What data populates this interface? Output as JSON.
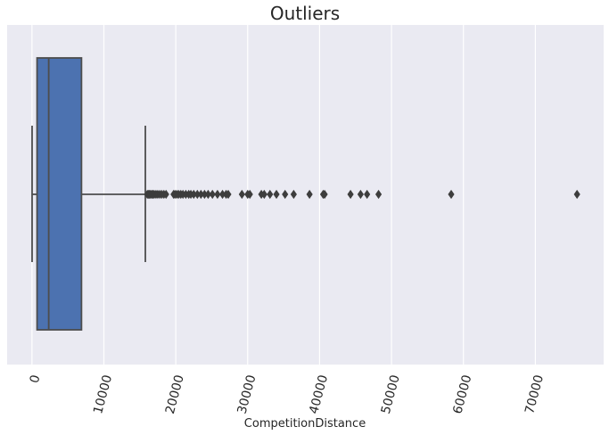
{
  "chart_data": {
    "type": "box",
    "orientation": "horizontal",
    "title": "Outliers",
    "xlabel": "CompetitionDistance",
    "ylabel": "",
    "xlim": [
      -3450,
      79500
    ],
    "xticks": [
      0,
      10000,
      20000,
      30000,
      40000,
      50000,
      60000,
      70000
    ],
    "xtick_labels": [
      "0",
      "10000",
      "20000",
      "30000",
      "40000",
      "50000",
      "60000",
      "70000"
    ],
    "xtick_rotation": -75,
    "grid": true,
    "box": {
      "whisker_low": 20,
      "q1": 710,
      "median": 2330,
      "q3": 6890,
      "whisker_high": 15770
    },
    "outliers": [
      16040,
      16180,
      16320,
      16490,
      16650,
      16820,
      17000,
      17250,
      17500,
      17780,
      18050,
      18350,
      18650,
      19700,
      19900,
      20150,
      20400,
      20700,
      21000,
      21400,
      21800,
      22100,
      22500,
      23000,
      23500,
      24000,
      24500,
      25100,
      25800,
      26500,
      27000,
      27300,
      29200,
      30000,
      30300,
      31900,
      32300,
      33100,
      34000,
      35200,
      36400,
      38600,
      40500,
      40700,
      44300,
      45700,
      46600,
      48200,
      58300,
      75800
    ],
    "colors": {
      "box_fill": "#4c72b0",
      "line": "#4d4d4d",
      "background": "#eaeaf2",
      "grid": "#ffffff"
    }
  }
}
